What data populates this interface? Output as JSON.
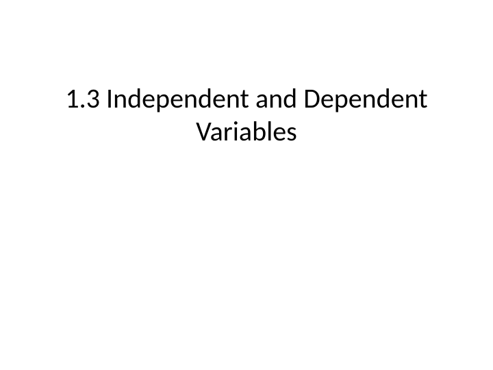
{
  "slide": {
    "title": "1.3 Independent and Dependent Variables",
    "title_fontsize": 40,
    "title_color": "#000000",
    "background_color": "#ffffff",
    "font_family": "Calibri",
    "text_align": "center"
  }
}
